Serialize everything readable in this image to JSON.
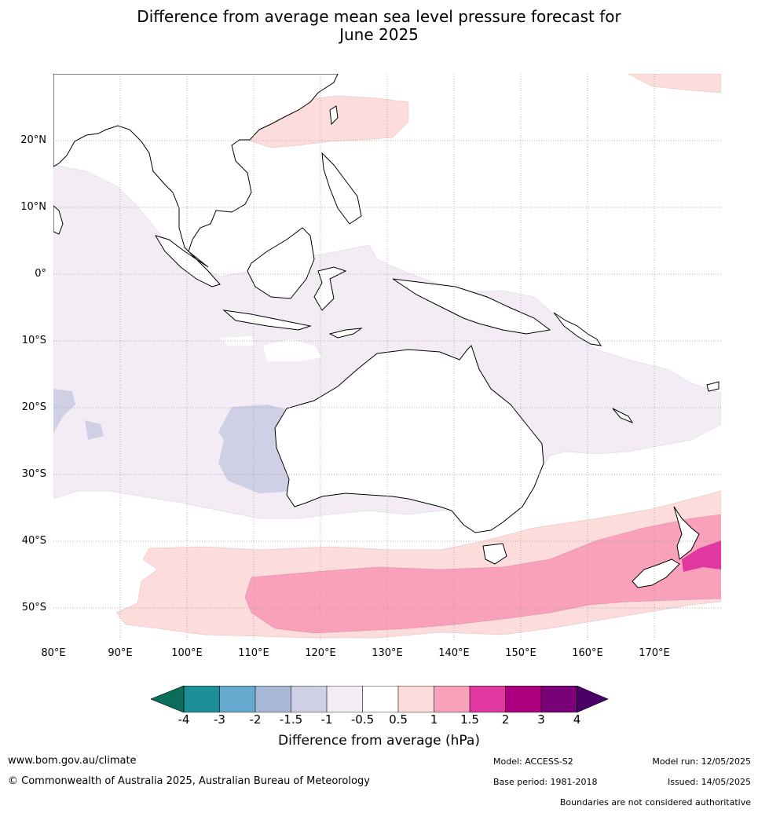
{
  "title_line1": "Difference from average mean sea level pressure forecast for",
  "title_line2": "June 2025",
  "lat_labels": [
    "20°N",
    "10°N",
    "0°",
    "10°S",
    "20°S",
    "30°S",
    "40°S",
    "50°S"
  ],
  "lon_labels": [
    "80°E",
    "90°E",
    "100°E",
    "110°E",
    "120°E",
    "130°E",
    "140°E",
    "150°E",
    "160°E",
    "170°E"
  ],
  "colorbar": {
    "ticks": [
      "-4",
      "-3",
      "-2",
      "-1.5",
      "-1",
      "-0.5",
      "0.5",
      "1",
      "1.5",
      "2",
      "3",
      "4"
    ],
    "label": "Difference from average (hPa)",
    "colors": {
      "below_-4": "#0b6e5a",
      "-4_-3": "#1e8f98",
      "-3_-2": "#66aad0",
      "-2_-1.5": "#a7b8d6",
      "-1.5_-1": "#cfd0e5",
      "-1_-0.5": "#f3ecf5",
      "-0.5_0.5": "#ffffff",
      "0.5_1": "#fddcdc",
      "1_1.5": "#f9a1ba",
      "1.5_2": "#e038a0",
      "2_3": "#ad0080",
      "3_4": "#7a0078",
      "above_4": "#4a0068"
    }
  },
  "footer": {
    "website": "www.bom.gov.au/climate",
    "copyright": "© Commonwealth of Australia 2025, Australian Bureau of Meteorology",
    "model": "Model: ACCESS-S2",
    "base_period": "Base period: 1981-2018",
    "model_run": "Model run: 12/05/2025",
    "issued": "Issued: 14/05/2025",
    "disclaimer": "Boundaries are not considered authoritative"
  }
}
